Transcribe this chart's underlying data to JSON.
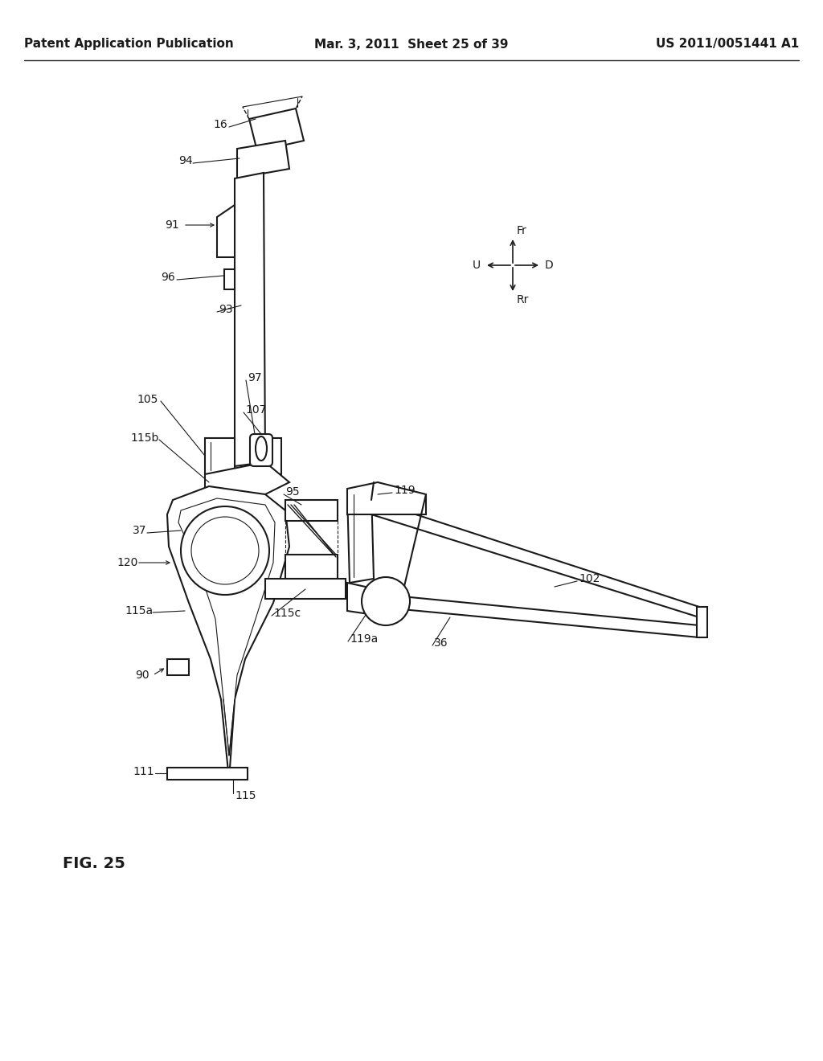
{
  "bg_color": "#ffffff",
  "line_color": "#1a1a1a",
  "title_left": "Patent Application Publication",
  "title_center": "Mar. 3, 2011  Sheet 25 of 39",
  "title_right": "US 2011/0051441 A1",
  "fig_label": "FIG. 25"
}
